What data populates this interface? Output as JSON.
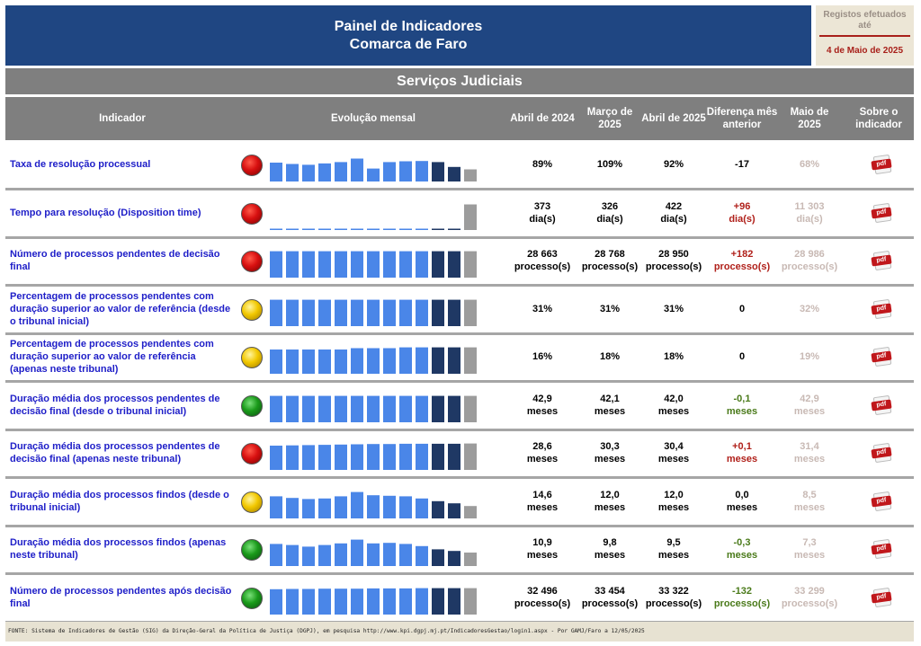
{
  "header": {
    "title_line1": "Painel de Indicadores",
    "title_line2": "Comarca de Faro",
    "registos_label": "Registos efetuados até",
    "registos_date": "4 de Maio de 2025"
  },
  "section_title": "Serviços Judiciais",
  "columns": {
    "indicador": "Indicador",
    "evolucao": "Evolução mensal",
    "c1": "Abril de 2024",
    "c2": "Março de 2025",
    "c3": "Abril de 2025",
    "c4": "Diferença mês anterior",
    "c5": "Maio de 2025",
    "c6": "Sobre o indicador"
  },
  "pdf_label": "pdf",
  "colors": {
    "header": "#1f4682",
    "bar_light": "#4a86e8",
    "bar_dark": "#1f3864",
    "bar_gray": "#9c9c9c"
  },
  "rows": [
    {
      "name": "Taxa de resolução processual",
      "status": "red",
      "v1": "89%",
      "v2": "109%",
      "v3": "92%",
      "diff": "-17",
      "diff_kind": "zero",
      "v5": "68%",
      "spark": [
        0.7,
        0.65,
        0.62,
        0.67,
        0.72,
        0.85,
        0.48,
        0.72,
        0.75,
        0.76,
        0.72,
        0.54,
        0.45
      ]
    },
    {
      "name": "Tempo para resolução (Disposition time)",
      "status": "red",
      "v1": "373\ndia(s)",
      "v2": "326\ndia(s)",
      "v3": "422\ndia(s)",
      "diff": "+96\ndia(s)",
      "diff_kind": "pos",
      "v5": "11 303\ndia(s)",
      "spark": [
        0.03,
        0.03,
        0.03,
        0.03,
        0.03,
        0.03,
        0.04,
        0.03,
        0.03,
        0.03,
        0.03,
        0.03,
        0.95
      ]
    },
    {
      "name": "Número de processos pendentes de decisão final",
      "status": "red",
      "v1": "28 663\nprocesso(s)",
      "v2": "28 768\nprocesso(s)",
      "v3": "28 950\nprocesso(s)",
      "diff": "+182\nprocesso(s)",
      "diff_kind": "pos",
      "v5": "28 986\nprocesso(s)",
      "spark": [
        0.98,
        0.98,
        0.98,
        0.98,
        0.98,
        0.98,
        0.98,
        0.98,
        0.98,
        0.98,
        0.98,
        0.98,
        0.98
      ]
    },
    {
      "name": "Percentagem de processos pendentes com duração superior ao valor de referência (desde o tribunal inicial)",
      "status": "yellow",
      "v1": "31%",
      "v2": "31%",
      "v3": "31%",
      "diff": "0",
      "diff_kind": "zero",
      "v5": "32%",
      "spark": [
        0.98,
        0.98,
        0.98,
        0.98,
        0.98,
        0.98,
        0.98,
        0.98,
        0.98,
        0.98,
        0.98,
        0.98,
        0.98
      ]
    },
    {
      "name": "Percentagem de processos pendentes com duração superior ao valor de referência (apenas neste tribunal)",
      "status": "yellow",
      "v1": "16%",
      "v2": "18%",
      "v3": "18%",
      "diff": "0",
      "diff_kind": "zero",
      "v5": "19%",
      "spark": [
        0.9,
        0.9,
        0.9,
        0.9,
        0.9,
        0.95,
        0.95,
        0.95,
        0.98,
        0.98,
        0.98,
        0.98,
        0.98
      ]
    },
    {
      "name": "Duração média dos processos pendentes de decisão final (desde o tribunal inicial)",
      "status": "green",
      "v1": "42,9\nmeses",
      "v2": "42,1\nmeses",
      "v3": "42,0\nmeses",
      "diff": "-0,1\nmeses",
      "diff_kind": "neg",
      "v5": "42,9\nmeses",
      "spark": [
        0.98,
        0.98,
        0.98,
        0.98,
        0.98,
        0.98,
        0.98,
        0.98,
        0.98,
        0.98,
        0.98,
        0.98,
        0.98
      ]
    },
    {
      "name": "Duração média dos processos pendentes de decisão final (apenas neste tribunal)",
      "status": "red",
      "v1": "28,6\nmeses",
      "v2": "30,3\nmeses",
      "v3": "30,4\nmeses",
      "diff": "+0,1\nmeses",
      "diff_kind": "pos",
      "v5": "31,4\nmeses",
      "spark": [
        0.9,
        0.91,
        0.92,
        0.93,
        0.94,
        0.95,
        0.96,
        0.96,
        0.97,
        0.97,
        0.97,
        0.97,
        0.98
      ]
    },
    {
      "name": "Duração média dos processos findos (desde o tribunal inicial)",
      "status": "yellow",
      "v1": "14,6\nmeses",
      "v2": "12,0\nmeses",
      "v3": "12,0\nmeses",
      "diff": "0,0\nmeses",
      "diff_kind": "zero",
      "v5": "8,5\nmeses",
      "spark": [
        0.82,
        0.76,
        0.72,
        0.74,
        0.82,
        0.98,
        0.86,
        0.84,
        0.82,
        0.74,
        0.64,
        0.56,
        0.46
      ]
    },
    {
      "name": "Duração média dos processos findos (apenas neste tribunal)",
      "status": "green",
      "v1": "10,9\nmeses",
      "v2": "9,8\nmeses",
      "v3": "9,5\nmeses",
      "diff": "-0,3\nmeses",
      "diff_kind": "neg",
      "v5": "7,3\nmeses",
      "spark": [
        0.82,
        0.78,
        0.72,
        0.78,
        0.84,
        0.98,
        0.84,
        0.86,
        0.82,
        0.74,
        0.62,
        0.56,
        0.5
      ]
    },
    {
      "name": "Número de processos pendentes após decisão final",
      "status": "green",
      "v1": "32 496\nprocesso(s)",
      "v2": "33 454\nprocesso(s)",
      "v3": "33 322\nprocesso(s)",
      "diff": "-132\nprocesso(s)",
      "diff_kind": "neg",
      "v5": "33 299\nprocesso(s)",
      "spark": [
        0.94,
        0.95,
        0.95,
        0.96,
        0.96,
        0.96,
        0.97,
        0.97,
        0.97,
        0.98,
        0.98,
        0.98,
        0.98
      ]
    }
  ],
  "footer": "FONTE: Sistema de Indicadores de Gestão (SIG) da Direção-Geral da Política de Justiça (DGPJ), em pesquisa http://www.kpi.dgpj.mj.pt/IndicadoresGestao/login1.aspx - Por GAMJ/Faro a 12/05/2025"
}
